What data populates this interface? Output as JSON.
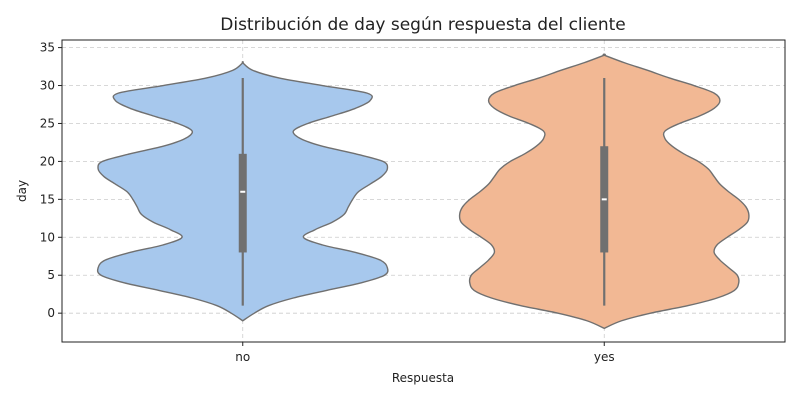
{
  "chart_data": {
    "type": "violin",
    "title": "Distribución de day según respuesta del cliente",
    "xlabel": "Respuesta",
    "ylabel": "day",
    "categories": [
      "no",
      "yes"
    ],
    "ylim": [
      -3.8,
      36
    ],
    "yticks": [
      0,
      5,
      10,
      15,
      20,
      25,
      30,
      35
    ],
    "grid": true,
    "series": [
      {
        "category": "no",
        "color": "#a7c8ed",
        "edge_color": "#707070",
        "box": {
          "min": 1,
          "q1": 8,
          "median": 16,
          "q3": 21,
          "max": 31
        },
        "density": [
          [
            -1,
            0.0
          ],
          [
            0,
            0.08
          ],
          [
            1,
            0.18
          ],
          [
            2,
            0.35
          ],
          [
            3,
            0.58
          ],
          [
            4,
            0.82
          ],
          [
            5,
            0.98
          ],
          [
            6,
            1.0
          ],
          [
            7,
            0.95
          ],
          [
            8,
            0.78
          ],
          [
            9,
            0.55
          ],
          [
            10,
            0.42
          ],
          [
            11,
            0.5
          ],
          [
            12,
            0.62
          ],
          [
            13,
            0.7
          ],
          [
            14,
            0.73
          ],
          [
            15,
            0.76
          ],
          [
            16,
            0.8
          ],
          [
            17,
            0.88
          ],
          [
            18,
            0.96
          ],
          [
            19,
            1.0
          ],
          [
            20,
            0.97
          ],
          [
            21,
            0.78
          ],
          [
            22,
            0.55
          ],
          [
            23,
            0.4
          ],
          [
            24,
            0.35
          ],
          [
            25,
            0.45
          ],
          [
            26,
            0.62
          ],
          [
            27,
            0.78
          ],
          [
            28,
            0.88
          ],
          [
            29,
            0.86
          ],
          [
            30,
            0.55
          ],
          [
            31,
            0.25
          ],
          [
            32,
            0.07
          ],
          [
            33,
            0.0
          ]
        ]
      },
      {
        "category": "yes",
        "color": "#f2b894",
        "edge_color": "#707070",
        "box": {
          "min": 1,
          "q1": 8,
          "median": 15,
          "q3": 22,
          "max": 31
        },
        "density": [
          [
            -2,
            0.0
          ],
          [
            -1,
            0.12
          ],
          [
            0,
            0.32
          ],
          [
            1,
            0.58
          ],
          [
            2,
            0.78
          ],
          [
            3,
            0.9
          ],
          [
            4,
            0.93
          ],
          [
            5,
            0.92
          ],
          [
            6,
            0.86
          ],
          [
            7,
            0.8
          ],
          [
            8,
            0.76
          ],
          [
            9,
            0.78
          ],
          [
            10,
            0.85
          ],
          [
            11,
            0.93
          ],
          [
            12,
            0.99
          ],
          [
            13,
            1.0
          ],
          [
            14,
            0.98
          ],
          [
            15,
            0.93
          ],
          [
            16,
            0.86
          ],
          [
            17,
            0.8
          ],
          [
            18,
            0.76
          ],
          [
            19,
            0.72
          ],
          [
            20,
            0.65
          ],
          [
            21,
            0.55
          ],
          [
            22,
            0.47
          ],
          [
            23,
            0.42
          ],
          [
            24,
            0.42
          ],
          [
            25,
            0.52
          ],
          [
            26,
            0.66
          ],
          [
            27,
            0.76
          ],
          [
            28,
            0.8
          ],
          [
            29,
            0.76
          ],
          [
            30,
            0.62
          ],
          [
            31,
            0.45
          ],
          [
            32,
            0.3
          ],
          [
            33,
            0.14
          ],
          [
            34,
            0.0
          ]
        ]
      }
    ]
  }
}
